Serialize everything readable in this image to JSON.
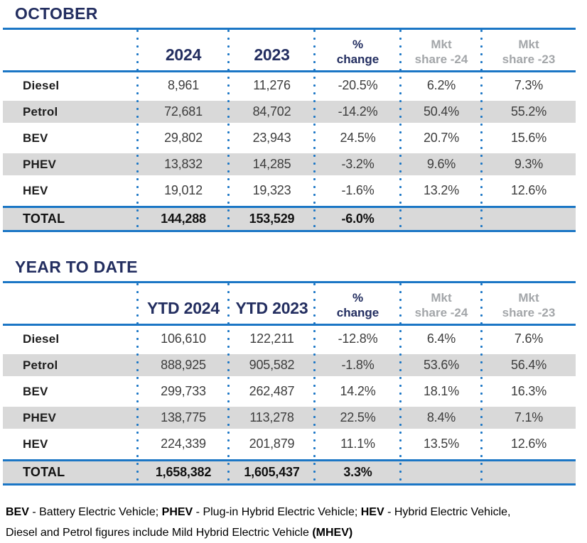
{
  "colors": {
    "navy": "#232e60",
    "blue_line": "#1b76c5",
    "row_alt_gray": "#d9d9d9",
    "muted_gray_text": "#a3a6a9"
  },
  "tables": [
    {
      "title": "OCTOBER",
      "headers": {
        "year_a": "2024",
        "year_b": "2023",
        "change_l1": "%",
        "change_l2": "change",
        "share24_l1": "Mkt",
        "share24_l2": "share -24",
        "share23_l1": "Mkt",
        "share23_l2": "share -23"
      },
      "rows": [
        {
          "label": "Diesel",
          "v2024": "8,961",
          "v2023": "11,276",
          "change": "-20.5%",
          "share24": "6.2%",
          "share23": "7.3%"
        },
        {
          "label": "Petrol",
          "v2024": "72,681",
          "v2023": "84,702",
          "change": "-14.2%",
          "share24": "50.4%",
          "share23": "55.2%"
        },
        {
          "label": "BEV",
          "v2024": "29,802",
          "v2023": "23,943",
          "change": "24.5%",
          "share24": "20.7%",
          "share23": "15.6%"
        },
        {
          "label": "PHEV",
          "v2024": "13,832",
          "v2023": "14,285",
          "change": "-3.2%",
          "share24": "9.6%",
          "share23": "9.3%"
        },
        {
          "label": "HEV",
          "v2024": "19,012",
          "v2023": "19,323",
          "change": "-1.6%",
          "share24": "13.2%",
          "share23": "12.6%"
        }
      ],
      "total": {
        "label": "TOTAL",
        "v2024": "144,288",
        "v2023": "153,529",
        "change": "-6.0%",
        "share24": "",
        "share23": ""
      }
    },
    {
      "title": "YEAR TO DATE",
      "headers": {
        "year_a": "YTD 2024",
        "year_b": "YTD 2023",
        "change_l1": "%",
        "change_l2": "change",
        "share24_l1": "Mkt",
        "share24_l2": "share -24",
        "share23_l1": "Mkt",
        "share23_l2": "share -23"
      },
      "rows": [
        {
          "label": "Diesel",
          "v2024": "106,610",
          "v2023": "122,211",
          "change": "-12.8%",
          "share24": "6.4%",
          "share23": "7.6%"
        },
        {
          "label": "Petrol",
          "v2024": "888,925",
          "v2023": "905,582",
          "change": "-1.8%",
          "share24": "53.6%",
          "share23": "56.4%"
        },
        {
          "label": "BEV",
          "v2024": "299,733",
          "v2023": "262,487",
          "change": "14.2%",
          "share24": "18.1%",
          "share23": "16.3%"
        },
        {
          "label": "PHEV",
          "v2024": "138,775",
          "v2023": "113,278",
          "change": "22.5%",
          "share24": "8.4%",
          "share23": "7.1%"
        },
        {
          "label": "HEV",
          "v2024": "224,339",
          "v2023": "201,879",
          "change": "11.1%",
          "share24": "13.5%",
          "share23": "12.6%"
        }
      ],
      "total": {
        "label": "TOTAL",
        "v2024": "1,658,382",
        "v2023": "1,605,437",
        "change": "3.3%",
        "share24": "",
        "share23": ""
      }
    }
  ],
  "footer": {
    "line1_parts": [
      "BEV",
      " - Battery Electric Vehicle; ",
      "PHEV",
      " - Plug-in Hybrid Electric Vehicle; ",
      "HEV",
      " - Hybrid Electric Vehicle,"
    ],
    "line2_parts": [
      "Diesel and Petrol figures include Mild Hybrid Electric Vehicle ",
      "(MHEV)"
    ]
  }
}
